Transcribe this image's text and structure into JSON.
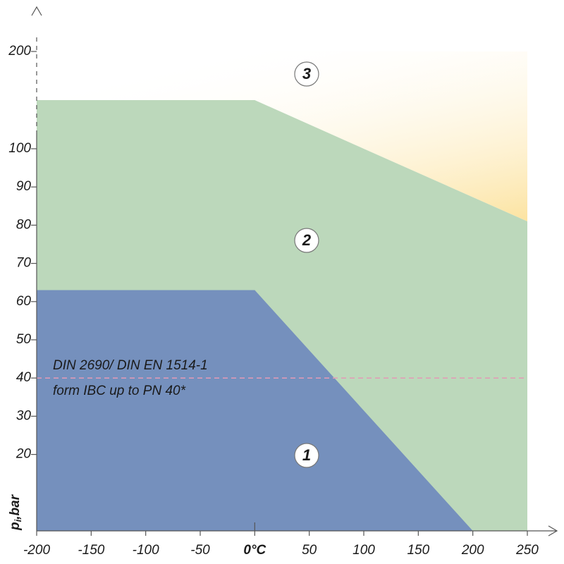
{
  "chart_data": {
    "type": "region",
    "xlim": [
      -200,
      250
    ],
    "ylim": [
      0,
      200
    ],
    "xticks": [
      -200,
      -150,
      -100,
      -50,
      {
        "value": 0,
        "label": "0°C"
      },
      50,
      100,
      150,
      200,
      250
    ],
    "yticks": [
      20,
      30,
      40,
      50,
      60,
      70,
      80,
      90,
      100,
      200
    ],
    "ylabel": {
      "symbol": "p",
      "subscript": "i",
      "unit": ",bar"
    },
    "series": [
      {
        "name": "3",
        "color": "#fce3a0",
        "x": [
          -200,
          0,
          100,
          250,
          250,
          -200
        ],
        "values": [
          150,
          150,
          100,
          81,
          200,
          200
        ]
      },
      {
        "name": "2",
        "color": "#bcd8bb",
        "x": [
          -200,
          -200,
          0,
          100,
          250,
          250
        ],
        "values": [
          0,
          150,
          150,
          100,
          81,
          0
        ]
      },
      {
        "name": "1",
        "color": "#7590bd",
        "x": [
          -200,
          -200,
          0,
          200
        ],
        "values": [
          0,
          63,
          63,
          0
        ]
      }
    ],
    "reference_line": {
      "value": 40,
      "color": "#e39ab6",
      "label": [
        "DIN 2690/ DIN EN 1514-1",
        "form IBC up to PN 40*"
      ]
    }
  }
}
